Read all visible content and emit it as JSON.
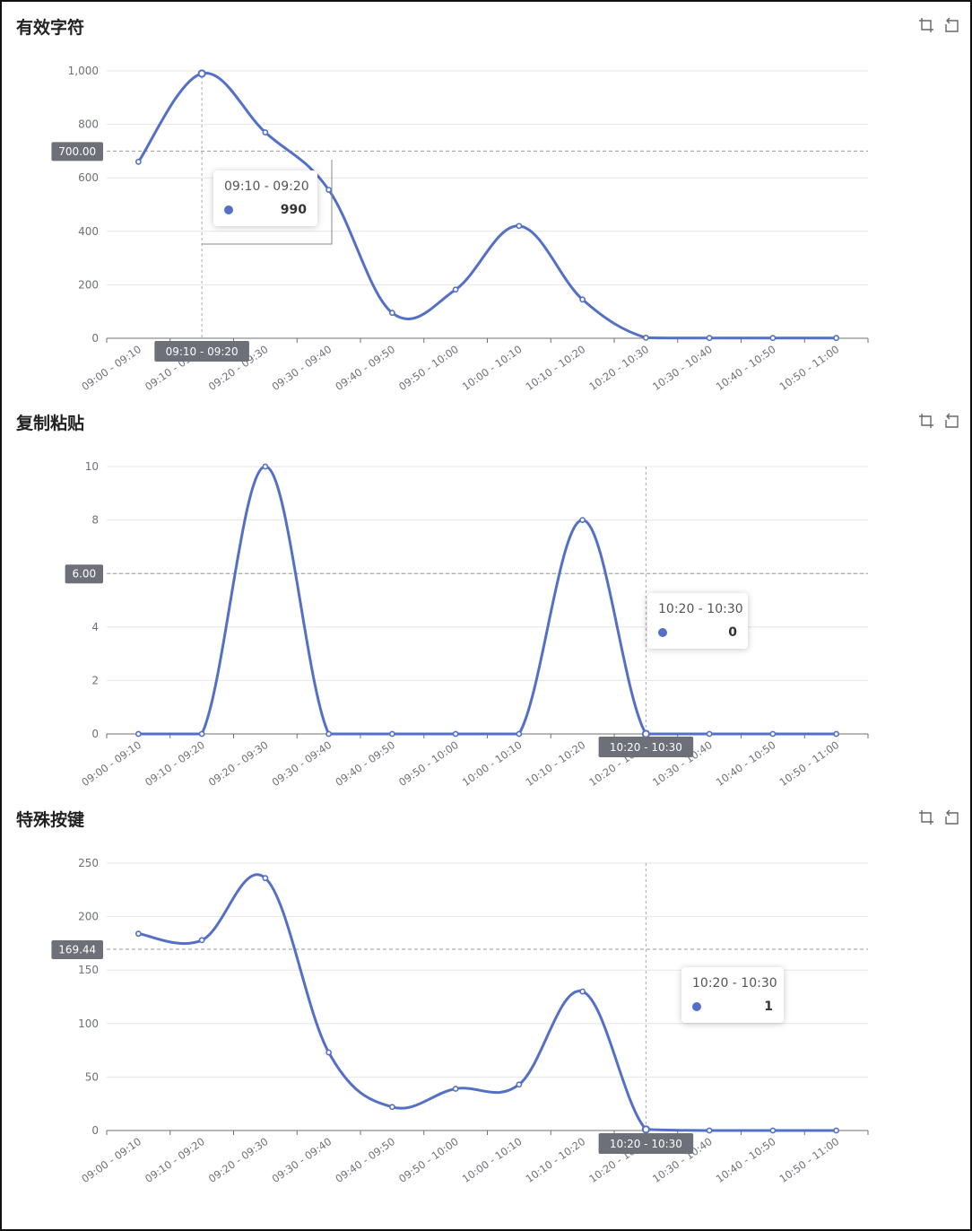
{
  "colors": {
    "series": "#5470c6",
    "axisPointerLabel": "#6e7079",
    "grid": "#e6e6e6",
    "axisText": "#6e7079"
  },
  "toolbar_icons": [
    "crop-zoom-icon",
    "undo-zoom-icon"
  ],
  "chart_data": [
    {
      "type": "line",
      "title": "有效字符",
      "categories": [
        "09:00 - 09:10",
        "09:10 - 09:20",
        "09:20 - 09:30",
        "09:30 - 09:40",
        "09:40 - 09:50",
        "09:50 - 10:00",
        "10:00 - 10:10",
        "10:10 - 10:20",
        "10:20 - 10:30",
        "10:30 - 10:40",
        "10:40 - 10:50",
        "10:50 - 11:00"
      ],
      "values": [
        660,
        990,
        770,
        555,
        95,
        182,
        420,
        145,
        2,
        1,
        1,
        1
      ],
      "ylim": [
        0,
        1000
      ],
      "yticks": [
        "0",
        "200",
        "400",
        "600",
        "800",
        "1,000"
      ],
      "grid": true,
      "pointer_y_label": "700.00",
      "pointer_y_value": 700,
      "pointer_x_label": "09:10 - 09:20",
      "pointer_x_index": 1,
      "tooltip": {
        "title": "09:10 - 09:20",
        "value": "990"
      }
    },
    {
      "type": "line",
      "title": "复制粘贴",
      "categories": [
        "09:00 - 09:10",
        "09:10 - 09:20",
        "09:20 - 09:30",
        "09:30 - 09:40",
        "09:40 - 09:50",
        "09:50 - 10:00",
        "10:00 - 10:10",
        "10:10 - 10:20",
        "10:20 - 10:30",
        "10:30 - 10:40",
        "10:40 - 10:50",
        "10:50 - 11:00"
      ],
      "values": [
        0,
        0,
        10,
        0,
        0,
        0,
        0,
        8,
        0,
        0,
        0,
        0
      ],
      "ylim": [
        0,
        10
      ],
      "yticks": [
        "0",
        "2",
        "4",
        "6",
        "8",
        "10"
      ],
      "grid": true,
      "pointer_y_label": "6.00",
      "pointer_y_value": 6,
      "pointer_x_label": "10:20 - 10:30",
      "pointer_x_index": 8,
      "tooltip": {
        "title": "10:20 - 10:30",
        "value": "0"
      }
    },
    {
      "type": "line",
      "title": "特殊按键",
      "categories": [
        "09:00 - 09:10",
        "09:10 - 09:20",
        "09:20 - 09:30",
        "09:30 - 09:40",
        "09:40 - 09:50",
        "09:50 - 10:00",
        "10:00 - 10:10",
        "10:10 - 10:20",
        "10:20 - 10:30",
        "10:30 - 10:40",
        "10:40 - 10:50",
        "10:50 - 11:00"
      ],
      "values": [
        184,
        178,
        236,
        73,
        22,
        39,
        43,
        130,
        1,
        0,
        0,
        0
      ],
      "ylim": [
        0,
        250
      ],
      "yticks": [
        "0",
        "50",
        "100",
        "150",
        "200",
        "250"
      ],
      "grid": true,
      "pointer_y_label": "169.44",
      "pointer_y_value": 169.44,
      "pointer_x_label": "10:20 - 10:30",
      "pointer_x_index": 8,
      "tooltip": {
        "title": "10:20 - 10:30",
        "value": "1"
      }
    }
  ]
}
